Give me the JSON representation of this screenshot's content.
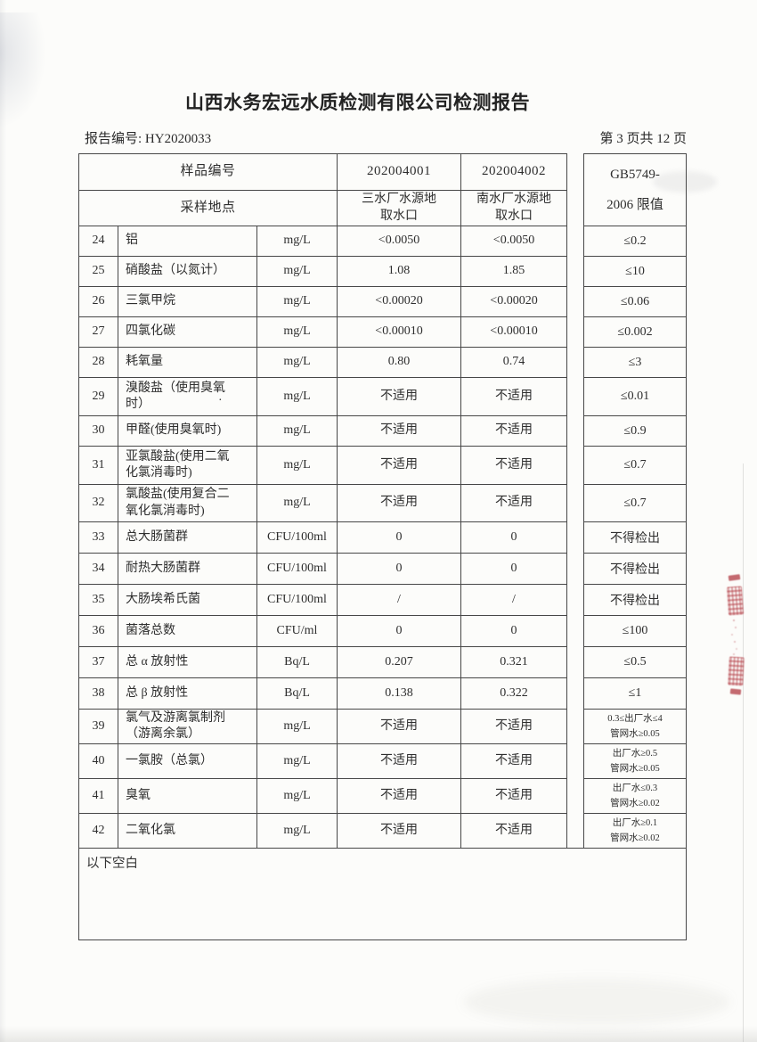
{
  "page": {
    "title": "山西水务宏远水质检测有限公司检测报告",
    "report_no": "报告编号: HY2020033",
    "page_indicator": "第 3 页共 12 页"
  },
  "table": {
    "header": {
      "sample_no_label": "样品编号",
      "sample_id_1": "202004001",
      "sample_id_2": "202004002",
      "location_label": "采样地点",
      "location_1": "三水厂水源地\n取水口",
      "location_2": "南水厂水源地\n取水口",
      "limit_label": "GB5749-\n2006 限值"
    },
    "rows": [
      {
        "no": "24",
        "name": "铝",
        "unit": "mg/L",
        "v1": "<0.0050",
        "v2": "<0.0050",
        "limit": "≤0.2"
      },
      {
        "no": "25",
        "name": "硝酸盐（以氮计）",
        "unit": "mg/L",
        "v1": "1.08",
        "v2": "1.85",
        "limit": "≤10"
      },
      {
        "no": "26",
        "name": "三氯甲烷",
        "unit": "mg/L",
        "v1": "<0.00020",
        "v2": "<0.00020",
        "limit": "≤0.06"
      },
      {
        "no": "27",
        "name": "四氯化碳",
        "unit": "mg/L",
        "v1": "<0.00010",
        "v2": "<0.00010",
        "limit": "≤0.002"
      },
      {
        "no": "28",
        "name": "耗氧量",
        "unit": "mg/L",
        "v1": "0.80",
        "v2": "0.74",
        "limit": "≤3"
      },
      {
        "no": "29",
        "name": "溴酸盐（使用臭氧\n时）",
        "unit": "mg/L",
        "v1": "不适用",
        "v2": "不适用",
        "limit": "≤0.01"
      },
      {
        "no": "30",
        "name": "甲醛(使用臭氧时)",
        "unit": "mg/L",
        "v1": "不适用",
        "v2": "不适用",
        "limit": "≤0.9"
      },
      {
        "no": "31",
        "name": "亚氯酸盐(使用二氧\n化氯消毒时)",
        "unit": "mg/L",
        "v1": "不适用",
        "v2": "不适用",
        "limit": "≤0.7"
      },
      {
        "no": "32",
        "name": "氯酸盐(使用复合二\n氧化氯消毒时)",
        "unit": "mg/L",
        "v1": "不适用",
        "v2": "不适用",
        "limit": "≤0.7"
      },
      {
        "no": "33",
        "name": "总大肠菌群",
        "unit": "CFU/100ml",
        "v1": "0",
        "v2": "0",
        "limit": "不得检出"
      },
      {
        "no": "34",
        "name": "耐热大肠菌群",
        "unit": "CFU/100ml",
        "v1": "0",
        "v2": "0",
        "limit": "不得检出"
      },
      {
        "no": "35",
        "name": "大肠埃希氏菌",
        "unit": "CFU/100ml",
        "v1": "/",
        "v2": "/",
        "limit": "不得检出"
      },
      {
        "no": "36",
        "name": "菌落总数",
        "unit": "CFU/ml",
        "v1": "0",
        "v2": "0",
        "limit": "≤100"
      },
      {
        "no": "37",
        "name": "总 α 放射性",
        "unit": "Bq/L",
        "v1": "0.207",
        "v2": "0.321",
        "limit": "≤0.5"
      },
      {
        "no": "38",
        "name": "总 β 放射性",
        "unit": "Bq/L",
        "v1": "0.138",
        "v2": "0.322",
        "limit": "≤1"
      },
      {
        "no": "39",
        "name": "氯气及游离氯制剂\n（游离余氯）",
        "unit": "mg/L",
        "v1": "不适用",
        "v2": "不适用",
        "limit": "0.3≤出厂水≤4\n管网水≥0.05"
      },
      {
        "no": "40",
        "name": "一氯胺（总氯）",
        "unit": "mg/L",
        "v1": "不适用",
        "v2": "不适用",
        "limit": "出厂水≥0.5\n管网水≥0.05"
      },
      {
        "no": "41",
        "name": "臭氧",
        "unit": "mg/L",
        "v1": "不适用",
        "v2": "不适用",
        "limit": "出厂水≤0.3\n管网水≥0.02"
      },
      {
        "no": "42",
        "name": "二氧化氯",
        "unit": "mg/L",
        "v1": "不适用",
        "v2": "不适用",
        "limit": "出厂水≥0.1\n管网水≥0.02"
      }
    ],
    "blank_note": "以下空白",
    "stray_dot": "·"
  },
  "artifacts": {
    "seal_color": "#b23a42",
    "border_color": "#474747",
    "text_color": "#2e2e2e"
  }
}
